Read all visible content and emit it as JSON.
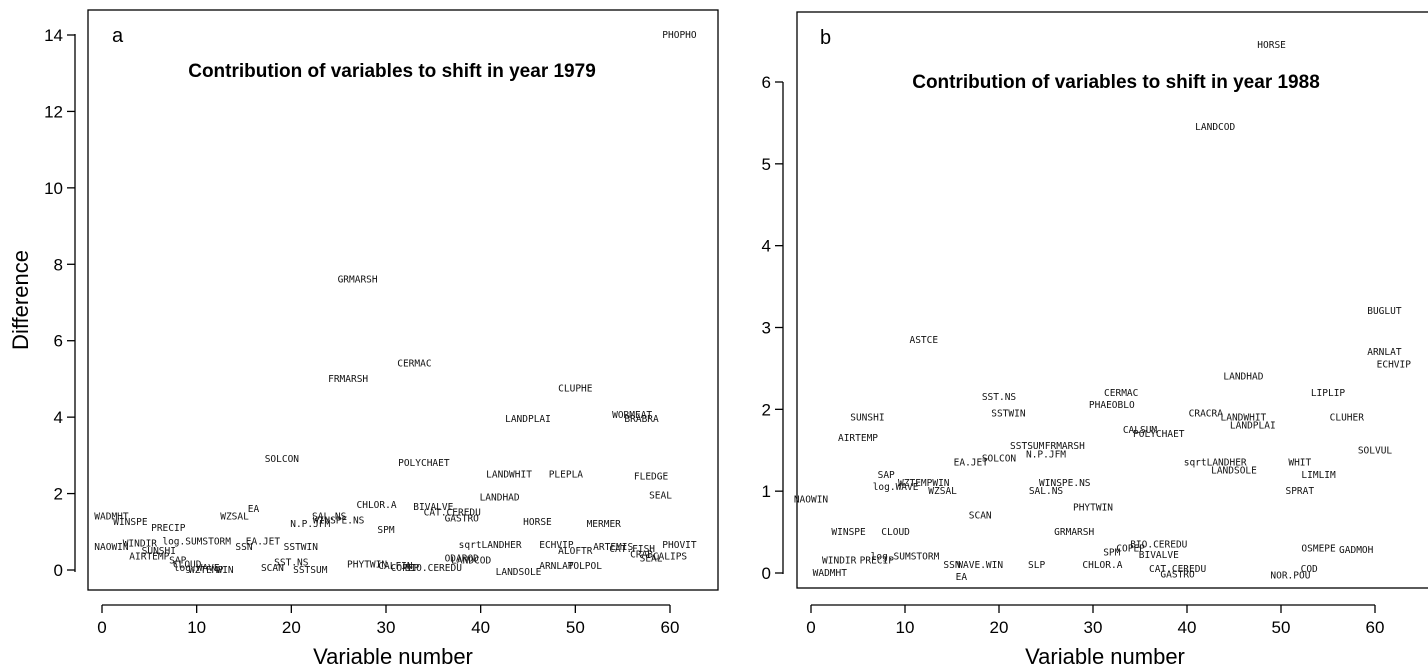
{
  "chart_data": [
    {
      "type": "scatter",
      "panel_label": "a",
      "title": "Contribution of variables to shift in year 1979",
      "xlabel": "Variable number",
      "ylabel": "Difference",
      "xlim": [
        -1.5,
        65
      ],
      "ylim": [
        -0.45,
        14.8
      ],
      "xticks": [
        0,
        10,
        20,
        30,
        40,
        50,
        60
      ],
      "yticks": [
        0,
        2,
        4,
        6,
        8,
        10,
        12,
        14
      ],
      "grid": false,
      "points": [
        {
          "label": "PHOPHO",
          "x": 61,
          "y": 14
        },
        {
          "label": "GRMARSH",
          "x": 27,
          "y": 7.6
        },
        {
          "label": "CERMAC",
          "x": 33,
          "y": 5.4
        },
        {
          "label": "FRMARSH",
          "x": 26,
          "y": 5.0
        },
        {
          "label": "CLUPHE",
          "x": 50,
          "y": 4.75
        },
        {
          "label": "WORMEAT",
          "x": 56,
          "y": 4.05
        },
        {
          "label": "BRABRA",
          "x": 57,
          "y": 3.95
        },
        {
          "label": "LANDPLAI",
          "x": 45,
          "y": 3.95
        },
        {
          "label": "SOLCON",
          "x": 19,
          "y": 2.9
        },
        {
          "label": "POLYCHAET",
          "x": 34,
          "y": 2.8
        },
        {
          "label": "LANDWHIT",
          "x": 43,
          "y": 2.5
        },
        {
          "label": "PLEPLA",
          "x": 49,
          "y": 2.5
        },
        {
          "label": "FLEDGE",
          "x": 58,
          "y": 2.45
        },
        {
          "label": "LANDHAD",
          "x": 42,
          "y": 1.9
        },
        {
          "label": "SEAL",
          "x": 59,
          "y": 1.95
        },
        {
          "label": "CHLOR.A",
          "x": 29,
          "y": 1.7
        },
        {
          "label": "BIVALVE",
          "x": 35,
          "y": 1.65
        },
        {
          "label": "CAT.CEREDU",
          "x": 37,
          "y": 1.5
        },
        {
          "label": "EA",
          "x": 16,
          "y": 1.6
        },
        {
          "label": "WADMHT",
          "x": 1,
          "y": 1.4
        },
        {
          "label": "WZSAL",
          "x": 14,
          "y": 1.4
        },
        {
          "label": "SAL.NS",
          "x": 24,
          "y": 1.4
        },
        {
          "label": "GASTRO",
          "x": 38,
          "y": 1.35
        },
        {
          "label": "WINSPE",
          "x": 3,
          "y": 1.25
        },
        {
          "label": "WINSPE.NS",
          "x": 25,
          "y": 1.3
        },
        {
          "label": "N.P.JFM",
          "x": 22,
          "y": 1.2
        },
        {
          "label": "HORSE",
          "x": 46,
          "y": 1.25
        },
        {
          "label": "MERMER",
          "x": 53,
          "y": 1.2
        },
        {
          "label": "PRECIP",
          "x": 7,
          "y": 1.1
        },
        {
          "label": "SPM",
          "x": 30,
          "y": 1.05
        },
        {
          "label": "log.SUMSTORM",
          "x": 10,
          "y": 0.75
        },
        {
          "label": "WINDIR",
          "x": 4,
          "y": 0.7
        },
        {
          "label": "EA.JET",
          "x": 17,
          "y": 0.75
        },
        {
          "label": "NAOWIN",
          "x": 1,
          "y": 0.6
        },
        {
          "label": "SSN",
          "x": 15,
          "y": 0.6
        },
        {
          "label": "SSTWIN",
          "x": 21,
          "y": 0.6
        },
        {
          "label": "sqrtLANDHER",
          "x": 41,
          "y": 0.65
        },
        {
          "label": "ECHVIP",
          "x": 48,
          "y": 0.65
        },
        {
          "label": "ARTEMIS",
          "x": 54,
          "y": 0.6
        },
        {
          "label": "CAT.FISH",
          "x": 56,
          "y": 0.55
        },
        {
          "label": "PHOVIT",
          "x": 61,
          "y": 0.65
        },
        {
          "label": "SUNSHI",
          "x": 6,
          "y": 0.5
        },
        {
          "label": "ALOFTR",
          "x": 50,
          "y": 0.5
        },
        {
          "label": "AIRTEMP",
          "x": 5,
          "y": 0.35
        },
        {
          "label": "CRAB",
          "x": 57,
          "y": 0.4
        },
        {
          "label": "CALIPS",
          "x": 60,
          "y": 0.35
        },
        {
          "label": "SEAL",
          "x": 58,
          "y": 0.3
        },
        {
          "label": "ODAROD",
          "x": 38,
          "y": 0.3
        },
        {
          "label": "LANDCOD",
          "x": 39,
          "y": 0.25
        },
        {
          "label": "SAP",
          "x": 8,
          "y": 0.25
        },
        {
          "label": "SST.NS",
          "x": 20,
          "y": 0.2
        },
        {
          "label": "PHYTWIN",
          "x": 28,
          "y": 0.15
        },
        {
          "label": "CALFIN",
          "x": 31,
          "y": 0.1
        },
        {
          "label": "COPEP",
          "x": 32,
          "y": 0.05
        },
        {
          "label": "BIO.CEREDU",
          "x": 35,
          "y": 0.05
        },
        {
          "label": "ARNLAT",
          "x": 48,
          "y": 0.1
        },
        {
          "label": "POLPOL",
          "x": 51,
          "y": 0.1
        },
        {
          "label": "CLOUD",
          "x": 9,
          "y": 0.15
        },
        {
          "label": "log.WAVE",
          "x": 10,
          "y": 0.05
        },
        {
          "label": "WZTEMP",
          "x": 11,
          "y": 0.0
        },
        {
          "label": "WIN",
          "x": 13,
          "y": 0.0
        },
        {
          "label": "SCAN",
          "x": 18,
          "y": 0.05
        },
        {
          "label": "SSTSUM",
          "x": 22,
          "y": 0.0
        },
        {
          "label": "LANDSOLE",
          "x": 44,
          "y": -0.05
        }
      ]
    },
    {
      "type": "scatter",
      "panel_label": "b",
      "title": "Contribution of variables to shift in year 1988",
      "xlabel": "Variable number",
      "ylabel": "",
      "xlim": [
        -1.5,
        65
      ],
      "ylim": [
        -0.2,
        6.8
      ],
      "xticks": [
        0,
        10,
        20,
        30,
        40,
        50,
        60
      ],
      "yticks": [
        0,
        1,
        2,
        3,
        4,
        5,
        6
      ],
      "grid": false,
      "points": [
        {
          "label": "HORSE",
          "x": 49,
          "y": 6.45
        },
        {
          "label": "LANDCOD",
          "x": 43,
          "y": 5.45
        },
        {
          "label": "BUGLUT",
          "x": 61,
          "y": 3.2
        },
        {
          "label": "ASTCE",
          "x": 12,
          "y": 2.85
        },
        {
          "label": "ARNLAT",
          "x": 61,
          "y": 2.7
        },
        {
          "label": "ECHVIP",
          "x": 62,
          "y": 2.55
        },
        {
          "label": "LANDHAD",
          "x": 46,
          "y": 2.4
        },
        {
          "label": "LIPLIP",
          "x": 55,
          "y": 2.2
        },
        {
          "label": "CERMAC",
          "x": 33,
          "y": 2.2
        },
        {
          "label": "SST.NS",
          "x": 20,
          "y": 2.15
        },
        {
          "label": "PHAEOBLO",
          "x": 32,
          "y": 2.05
        },
        {
          "label": "SSTWIN",
          "x": 21,
          "y": 1.95
        },
        {
          "label": "CRACRA",
          "x": 42,
          "y": 1.95
        },
        {
          "label": "LANDWHIT",
          "x": 46,
          "y": 1.9
        },
        {
          "label": "SUNSHI",
          "x": 6,
          "y": 1.9
        },
        {
          "label": "CLUHER",
          "x": 57,
          "y": 1.9
        },
        {
          "label": "LANDPLAI",
          "x": 47,
          "y": 1.8
        },
        {
          "label": "CALSUM",
          "x": 35,
          "y": 1.75
        },
        {
          "label": "POLYCHAET",
          "x": 37,
          "y": 1.7
        },
        {
          "label": "AIRTEMP",
          "x": 5,
          "y": 1.65
        },
        {
          "label": "SSTSUM",
          "x": 23,
          "y": 1.55
        },
        {
          "label": "FRMARSH",
          "x": 27,
          "y": 1.55
        },
        {
          "label": "N.P.JFM",
          "x": 25,
          "y": 1.45
        },
        {
          "label": "SOLVUL",
          "x": 60,
          "y": 1.5
        },
        {
          "label": "WHIT",
          "x": 52,
          "y": 1.35
        },
        {
          "label": "SOLCON",
          "x": 20,
          "y": 1.4
        },
        {
          "label": "sqrtLANDHER",
          "x": 43,
          "y": 1.35
        },
        {
          "label": "EA.JET",
          "x": 17,
          "y": 1.35
        },
        {
          "label": "LANDSOLE",
          "x": 45,
          "y": 1.25
        },
        {
          "label": "LIMLIM",
          "x": 54,
          "y": 1.2
        },
        {
          "label": "SAP",
          "x": 8,
          "y": 1.2
        },
        {
          "label": "WZTEMPWIN",
          "x": 12,
          "y": 1.1
        },
        {
          "label": "log.WAVE",
          "x": 9,
          "y": 1.05
        },
        {
          "label": "WINSPE.NS",
          "x": 27,
          "y": 1.1
        },
        {
          "label": "SAL.NS",
          "x": 25,
          "y": 1.0
        },
        {
          "label": "WZSAL",
          "x": 14,
          "y": 1.0
        },
        {
          "label": "SPRAT",
          "x": 52,
          "y": 1.0
        },
        {
          "label": "NAOWIN",
          "x": 0,
          "y": 0.9
        },
        {
          "label": "PHYTWIN",
          "x": 30,
          "y": 0.8
        },
        {
          "label": "SCAN",
          "x": 18,
          "y": 0.7
        },
        {
          "label": "GRMARSH",
          "x": 28,
          "y": 0.5
        },
        {
          "label": "WINSPE",
          "x": 4,
          "y": 0.5
        },
        {
          "label": "CLOUD",
          "x": 9,
          "y": 0.5
        },
        {
          "label": "BIO.CEREDU",
          "x": 37,
          "y": 0.35
        },
        {
          "label": "COPEP",
          "x": 34,
          "y": 0.3
        },
        {
          "label": "OSMEPE",
          "x": 54,
          "y": 0.3
        },
        {
          "label": "GADMOH",
          "x": 58,
          "y": 0.28
        },
        {
          "label": "SPM",
          "x": 32,
          "y": 0.25
        },
        {
          "label": "BIVALVE",
          "x": 37,
          "y": 0.22
        },
        {
          "label": "log.SUMSTORM",
          "x": 10,
          "y": 0.2
        },
        {
          "label": "WINDIR",
          "x": 3,
          "y": 0.15
        },
        {
          "label": "PRECIP",
          "x": 7,
          "y": 0.15
        },
        {
          "label": "SSN",
          "x": 15,
          "y": 0.1
        },
        {
          "label": "WAVE.WIN",
          "x": 18,
          "y": 0.1
        },
        {
          "label": "SLP",
          "x": 24,
          "y": 0.1
        },
        {
          "label": "CHLOR.A",
          "x": 31,
          "y": 0.1
        },
        {
          "label": "CAT.CEREDU",
          "x": 39,
          "y": 0.05
        },
        {
          "label": "COD",
          "x": 53,
          "y": 0.05
        },
        {
          "label": "WADMHT",
          "x": 2,
          "y": 0.0
        },
        {
          "label": "GASTRO",
          "x": 39,
          "y": -0.02
        },
        {
          "label": "NOR.POU",
          "x": 51,
          "y": -0.03
        },
        {
          "label": "EA",
          "x": 16,
          "y": -0.05
        }
      ]
    }
  ]
}
